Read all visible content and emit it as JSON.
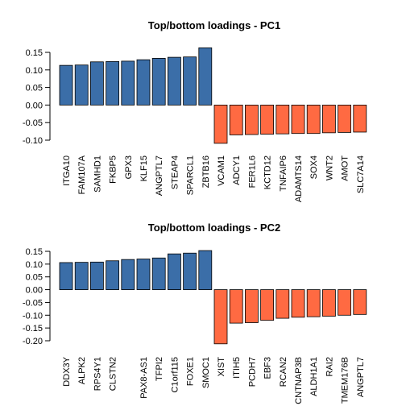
{
  "chart_data": [
    {
      "type": "bar",
      "title": "Top/bottom loadings - PC1",
      "xlabel": "",
      "ylabel": "",
      "ylim": [
        -0.11,
        0.165
      ],
      "yticks": [
        0.15,
        0.1,
        0.05,
        0.0,
        -0.05,
        -0.1
      ],
      "ytick_labels": [
        "0.15",
        "0.10",
        "0.05",
        "0.00",
        "-0.05",
        "-0.10"
      ],
      "categories": [
        "ITGA10",
        "FAM107A",
        "SAMHD1",
        "FKBP5",
        "GPX3",
        "KLF15",
        "ANGPTL7",
        "STEAP4",
        "SPARCL1",
        "ZBTB16",
        "VCAM1",
        "ADCY1",
        "FER1L6",
        "KCTD12",
        "TNFAIP6",
        "ADAMTS14",
        "SOX4",
        "WNT2",
        "AMOT",
        "SLC7A14"
      ],
      "values": [
        0.113,
        0.114,
        0.123,
        0.124,
        0.125,
        0.129,
        0.133,
        0.136,
        0.137,
        0.163,
        -0.109,
        -0.085,
        -0.084,
        -0.083,
        -0.082,
        -0.081,
        -0.081,
        -0.079,
        -0.078,
        -0.077
      ],
      "colors": {
        "positive": "#3b6ea8",
        "negative": "#ff6a42"
      },
      "grid": false,
      "legend": "none"
    },
    {
      "type": "bar",
      "title": "Top/bottom loadings - PC2",
      "xlabel": "",
      "ylabel": "",
      "ylim": [
        -0.22,
        0.155
      ],
      "yticks": [
        0.15,
        0.1,
        0.05,
        0.0,
        -0.05,
        -0.1,
        -0.15,
        -0.2
      ],
      "ytick_labels": [
        "0.15",
        "0.10",
        "0.05",
        "0.00",
        "-0.05",
        "-0.10",
        "-0.15",
        "-0.20"
      ],
      "categories": [
        "DDX3Y",
        "ALPK2",
        "RPS4Y1",
        "CLSTN2",
        "",
        "PAX8-AS1",
        "TFPI2",
        "C1orf115",
        "FOXE1",
        "SMOC1",
        "XIST",
        "ITIH5",
        "PCDH7",
        "EBF3",
        "RCAN2",
        "CNTNAP3B",
        "ALDH1A1",
        "RAI2",
        "TMEM176B",
        "ANGPTL7"
      ],
      "values": [
        0.106,
        0.107,
        0.108,
        0.113,
        0.118,
        0.12,
        0.124,
        0.14,
        0.143,
        0.153,
        -0.212,
        -0.131,
        -0.129,
        -0.12,
        -0.112,
        -0.108,
        -0.106,
        -0.104,
        -0.1,
        -0.097
      ],
      "colors": {
        "positive": "#3b6ea8",
        "negative": "#ff6a42"
      },
      "grid": false,
      "legend": "none"
    }
  ]
}
